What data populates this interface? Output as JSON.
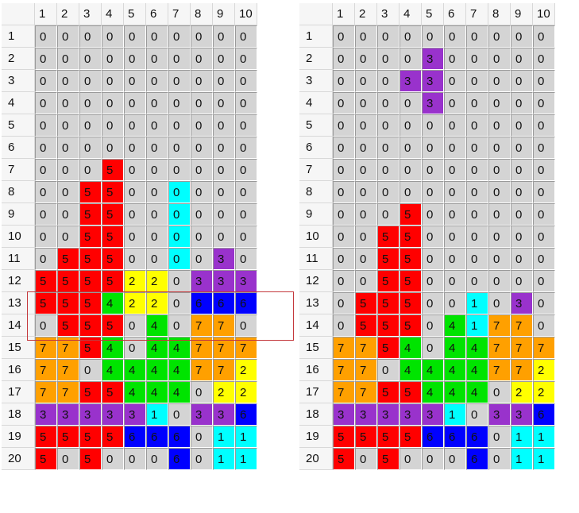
{
  "colors": {
    "0": "#d4d4d4",
    "1": "#00ffff",
    "2": "#ffff00",
    "3": "#9932cc",
    "4": "#00e400",
    "5": "#ff0000",
    "6": "#0000ff",
    "7": "#ffa000",
    "highlight": "#c4383c"
  },
  "columns": [
    "1",
    "2",
    "3",
    "4",
    "5",
    "6",
    "7",
    "8",
    "9",
    "10"
  ],
  "rows": [
    "1",
    "2",
    "3",
    "4",
    "5",
    "6",
    "7",
    "8",
    "9",
    "10",
    "11",
    "12",
    "13",
    "14",
    "15",
    "16",
    "17",
    "18",
    "19",
    "20"
  ],
  "left_grid": [
    [
      0,
      0,
      0,
      0,
      0,
      0,
      0,
      0,
      0,
      0
    ],
    [
      0,
      0,
      0,
      0,
      0,
      0,
      0,
      0,
      0,
      0
    ],
    [
      0,
      0,
      0,
      0,
      0,
      0,
      0,
      0,
      0,
      0
    ],
    [
      0,
      0,
      0,
      0,
      0,
      0,
      0,
      0,
      0,
      0
    ],
    [
      0,
      0,
      0,
      0,
      0,
      0,
      0,
      0,
      0,
      0
    ],
    [
      0,
      0,
      0,
      0,
      0,
      0,
      0,
      0,
      0,
      0
    ],
    [
      0,
      0,
      0,
      5,
      0,
      0,
      0,
      0,
      0,
      0
    ],
    [
      0,
      0,
      5,
      5,
      0,
      0,
      0,
      0,
      0,
      0
    ],
    [
      0,
      0,
      5,
      5,
      0,
      0,
      0,
      0,
      0,
      0
    ],
    [
      0,
      0,
      5,
      5,
      0,
      0,
      0,
      0,
      0,
      0
    ],
    [
      0,
      5,
      5,
      5,
      0,
      0,
      0,
      0,
      3,
      0
    ],
    [
      5,
      5,
      5,
      5,
      2,
      2,
      0,
      3,
      3,
      3
    ],
    [
      5,
      5,
      5,
      4,
      2,
      2,
      0,
      6,
      6,
      6
    ],
    [
      0,
      5,
      5,
      5,
      0,
      4,
      0,
      7,
      7,
      0
    ],
    [
      7,
      7,
      5,
      4,
      0,
      4,
      4,
      7,
      7,
      7
    ],
    [
      7,
      7,
      0,
      4,
      4,
      4,
      4,
      7,
      7,
      2
    ],
    [
      7,
      7,
      5,
      5,
      4,
      4,
      4,
      0,
      2,
      2
    ],
    [
      3,
      3,
      3,
      3,
      3,
      1,
      0,
      3,
      3,
      6
    ],
    [
      5,
      5,
      5,
      5,
      6,
      6,
      6,
      0,
      1,
      1
    ],
    [
      5,
      0,
      5,
      0,
      0,
      0,
      6,
      0,
      1,
      1
    ]
  ],
  "left_cyan_cells": [
    [
      7,
      6
    ],
    [
      8,
      6
    ],
    [
      9,
      6
    ],
    [
      10,
      6
    ]
  ],
  "right_grid": [
    [
      0,
      0,
      0,
      0,
      0,
      0,
      0,
      0,
      0,
      0
    ],
    [
      0,
      0,
      0,
      0,
      3,
      0,
      0,
      0,
      0,
      0
    ],
    [
      0,
      0,
      0,
      3,
      3,
      0,
      0,
      0,
      0,
      0
    ],
    [
      0,
      0,
      0,
      0,
      3,
      0,
      0,
      0,
      0,
      0
    ],
    [
      0,
      0,
      0,
      0,
      0,
      0,
      0,
      0,
      0,
      0
    ],
    [
      0,
      0,
      0,
      0,
      0,
      0,
      0,
      0,
      0,
      0
    ],
    [
      0,
      0,
      0,
      0,
      0,
      0,
      0,
      0,
      0,
      0
    ],
    [
      0,
      0,
      0,
      0,
      0,
      0,
      0,
      0,
      0,
      0
    ],
    [
      0,
      0,
      0,
      5,
      0,
      0,
      0,
      0,
      0,
      0
    ],
    [
      0,
      0,
      5,
      5,
      0,
      0,
      0,
      0,
      0,
      0
    ],
    [
      0,
      0,
      5,
      5,
      0,
      0,
      0,
      0,
      0,
      0
    ],
    [
      0,
      0,
      5,
      5,
      0,
      0,
      0,
      0,
      0,
      0
    ],
    [
      0,
      5,
      5,
      5,
      0,
      0,
      1,
      0,
      3,
      0
    ],
    [
      0,
      5,
      5,
      5,
      0,
      4,
      1,
      7,
      7,
      0
    ],
    [
      7,
      7,
      5,
      4,
      0,
      4,
      4,
      7,
      7,
      7
    ],
    [
      7,
      7,
      0,
      4,
      4,
      4,
      4,
      7,
      7,
      2
    ],
    [
      7,
      7,
      5,
      5,
      4,
      4,
      4,
      0,
      2,
      2
    ],
    [
      3,
      3,
      3,
      3,
      3,
      1,
      0,
      3,
      3,
      6
    ],
    [
      5,
      5,
      5,
      5,
      6,
      6,
      6,
      0,
      1,
      1
    ],
    [
      5,
      0,
      5,
      0,
      0,
      0,
      6,
      0,
      1,
      1
    ]
  ]
}
